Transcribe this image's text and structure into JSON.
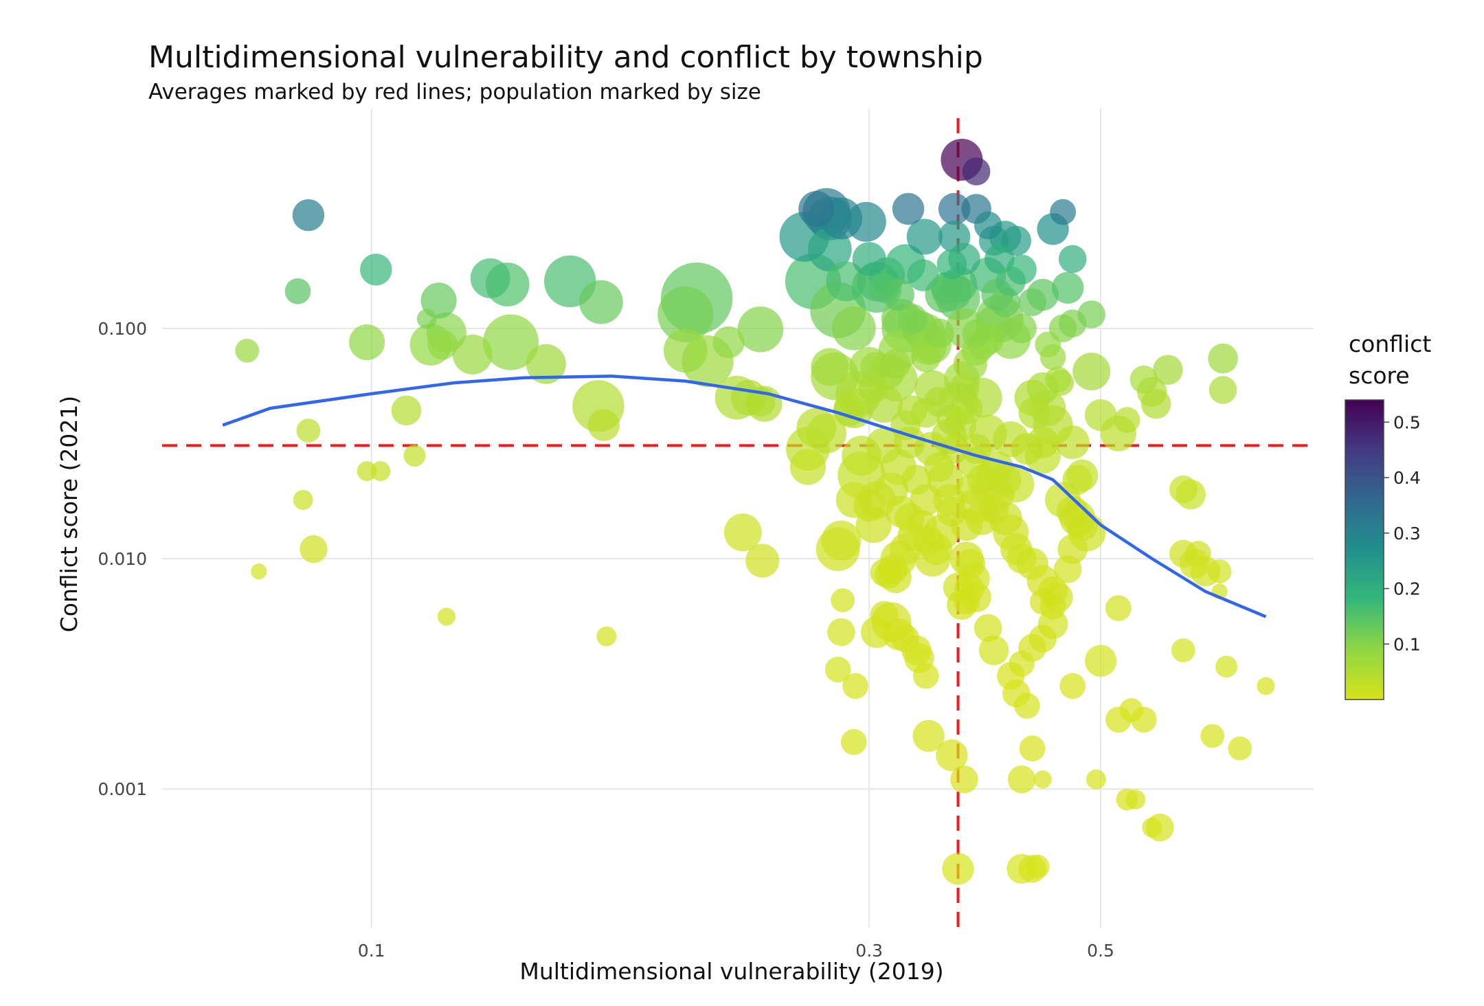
{
  "chart_data": {
    "type": "scatter",
    "title": "Multidimensional vulnerability and conflict by township",
    "subtitle": "Averages marked by red lines; population marked by size",
    "xlabel": "Multidimensional vulnerability (2019)",
    "ylabel": "Conflict score (2021)",
    "x_scale": "log",
    "y_scale": "log",
    "xlim": [
      0.063,
      0.8
    ],
    "ylim": [
      0.00025,
      0.9
    ],
    "x_ticks": [
      {
        "value": 0.1,
        "label": "0.1"
      },
      {
        "value": 0.3,
        "label": "0.3"
      },
      {
        "value": 0.5,
        "label": "0.5"
      }
    ],
    "y_ticks": [
      {
        "value": 0.001,
        "label": "0.001"
      },
      {
        "value": 0.01,
        "label": "0.010"
      },
      {
        "value": 0.1,
        "label": "0.100"
      }
    ],
    "grid": true,
    "reference_lines": {
      "color": "#ee1c1c",
      "style": "dashed",
      "x_mean": 0.365,
      "y_mean": 0.031
    },
    "smooth_line": {
      "color": "#3366ee",
      "points": [
        [
          0.072,
          0.038
        ],
        [
          0.08,
          0.045
        ],
        [
          0.1,
          0.052
        ],
        [
          0.12,
          0.058
        ],
        [
          0.14,
          0.061
        ],
        [
          0.17,
          0.062
        ],
        [
          0.2,
          0.059
        ],
        [
          0.24,
          0.052
        ],
        [
          0.28,
          0.043
        ],
        [
          0.33,
          0.034
        ],
        [
          0.38,
          0.028
        ],
        [
          0.42,
          0.025
        ],
        [
          0.45,
          0.022
        ],
        [
          0.5,
          0.014
        ],
        [
          0.56,
          0.01
        ],
        [
          0.63,
          0.0072
        ],
        [
          0.72,
          0.0056
        ]
      ]
    },
    "color_scale": {
      "title": "conflict score",
      "colors": [
        "#d7e219",
        "#8fd744",
        "#35b779",
        "#21908d",
        "#31688e",
        "#443a83",
        "#440154"
      ],
      "min": 0,
      "max": 0.54,
      "ticks": [
        "0.1",
        "0.2",
        "0.3",
        "0.4",
        "0.5"
      ]
    },
    "points": [
      [
        0.087,
        0.31,
        1.6
      ],
      [
        0.101,
        0.18,
        1.6
      ],
      [
        0.085,
        0.145,
        1.3
      ],
      [
        0.076,
        0.08,
        1.2
      ],
      [
        0.078,
        0.0088,
        0.8
      ],
      [
        0.087,
        0.036,
        1.2
      ],
      [
        0.086,
        0.018,
        1.0
      ],
      [
        0.088,
        0.011,
        1.4
      ],
      [
        0.099,
        0.087,
        1.8
      ],
      [
        0.099,
        0.024,
        1.0
      ],
      [
        0.102,
        0.024,
        1.0
      ],
      [
        0.108,
        0.044,
        1.5
      ],
      [
        0.11,
        0.028,
        1.1
      ],
      [
        0.113,
        0.11,
        1.0
      ],
      [
        0.116,
        0.132,
        1.8
      ],
      [
        0.114,
        0.085,
        2.1
      ],
      [
        0.118,
        0.096,
        2.0
      ],
      [
        0.117,
        0.085,
        1.5
      ],
      [
        0.125,
        0.077,
        2.0
      ],
      [
        0.13,
        0.165,
        2.0
      ],
      [
        0.135,
        0.155,
        2.2
      ],
      [
        0.136,
        0.087,
        2.8
      ],
      [
        0.147,
        0.07,
        2.0
      ],
      [
        0.155,
        0.16,
        2.6
      ],
      [
        0.166,
        0.13,
        2.2
      ],
      [
        0.165,
        0.046,
        2.6
      ],
      [
        0.167,
        0.038,
        1.6
      ],
      [
        0.118,
        0.0056,
        0.9
      ],
      [
        0.168,
        0.0046,
        1.0
      ],
      [
        0.2,
        0.115,
        2.8
      ],
      [
        0.205,
        0.135,
        3.6
      ],
      [
        0.2,
        0.08,
        2.2
      ],
      [
        0.21,
        0.072,
        2.6
      ],
      [
        0.22,
        0.087,
        1.6
      ],
      [
        0.236,
        0.099,
        2.3
      ],
      [
        0.224,
        0.05,
        2.2
      ],
      [
        0.23,
        0.05,
        1.8
      ],
      [
        0.236,
        0.048,
        1.5
      ],
      [
        0.238,
        0.047,
        1.8
      ],
      [
        0.227,
        0.013,
        1.9
      ],
      [
        0.237,
        0.0098,
        1.7
      ],
      [
        0.26,
        0.25,
        2.5
      ],
      [
        0.267,
        0.33,
        1.8
      ],
      [
        0.273,
        0.32,
        2.4
      ],
      [
        0.275,
        0.3,
        2.2
      ],
      [
        0.275,
        0.22,
        2.2
      ],
      [
        0.282,
        0.3,
        2.1
      ],
      [
        0.265,
        0.16,
        2.8
      ],
      [
        0.28,
        0.12,
        2.8
      ],
      [
        0.285,
        0.16,
        2.0
      ],
      [
        0.29,
        0.1,
        2.2
      ],
      [
        0.298,
        0.29,
        2.0
      ],
      [
        0.3,
        0.2,
        1.7
      ],
      [
        0.305,
        0.16,
        2.0
      ],
      [
        0.305,
        0.15,
        2.5
      ],
      [
        0.312,
        0.17,
        1.8
      ],
      [
        0.31,
        0.15,
        1.5
      ],
      [
        0.275,
        0.068,
        1.9
      ],
      [
        0.278,
        0.062,
        2.4
      ],
      [
        0.287,
        0.044,
        1.6
      ],
      [
        0.29,
        0.045,
        2.0
      ],
      [
        0.293,
        0.052,
        2.3
      ],
      [
        0.3,
        0.068,
        2.0
      ],
      [
        0.304,
        0.068,
        1.5
      ],
      [
        0.303,
        0.055,
        1.5
      ],
      [
        0.312,
        0.065,
        1.8
      ],
      [
        0.318,
        0.06,
        2.2
      ],
      [
        0.31,
        0.047,
        1.9
      ],
      [
        0.267,
        0.037,
        2.0
      ],
      [
        0.262,
        0.03,
        2.2
      ],
      [
        0.262,
        0.025,
        1.8
      ],
      [
        0.273,
        0.035,
        2.0
      ],
      [
        0.295,
        0.028,
        2.0
      ],
      [
        0.295,
        0.023,
        2.4
      ],
      [
        0.29,
        0.018,
        1.8
      ],
      [
        0.3,
        0.017,
        1.6
      ],
      [
        0.303,
        0.014,
        1.8
      ],
      [
        0.31,
        0.031,
        1.8
      ],
      [
        0.305,
        0.018,
        1.9
      ],
      [
        0.282,
        0.012,
        2.0
      ],
      [
        0.28,
        0.011,
        2.2
      ],
      [
        0.283,
        0.0066,
        1.2
      ],
      [
        0.282,
        0.0048,
        1.4
      ],
      [
        0.28,
        0.0033,
        1.3
      ],
      [
        0.291,
        0.0028,
        1.3
      ],
      [
        0.29,
        0.0016,
        1.3
      ],
      [
        0.31,
        0.0087,
        1.4
      ],
      [
        0.327,
        0.33,
        1.6
      ],
      [
        0.339,
        0.25,
        1.8
      ],
      [
        0.338,
        0.17,
        1.6
      ],
      [
        0.325,
        0.19,
        2.0
      ],
      [
        0.32,
        0.14,
        1.6
      ],
      [
        0.322,
        0.11,
        2.0
      ],
      [
        0.33,
        0.11,
        1.5
      ],
      [
        0.335,
        0.1,
        1.8
      ],
      [
        0.34,
        0.095,
        2.0
      ],
      [
        0.342,
        0.083,
        1.8
      ],
      [
        0.34,
        0.075,
        1.5
      ],
      [
        0.325,
        0.1,
        2.4
      ],
      [
        0.32,
        0.08,
        2.0
      ],
      [
        0.318,
        0.07,
        1.5
      ],
      [
        0.345,
        0.085,
        1.9
      ],
      [
        0.35,
        0.095,
        1.5
      ],
      [
        0.36,
        0.145,
        2.0
      ],
      [
        0.365,
        0.135,
        2.2
      ],
      [
        0.362,
        0.33,
        1.6
      ],
      [
        0.362,
        0.25,
        1.6
      ],
      [
        0.36,
        0.19,
        1.5
      ],
      [
        0.366,
        0.155,
        1.8
      ],
      [
        0.356,
        0.15,
        1.6
      ],
      [
        0.353,
        0.14,
        1.8
      ],
      [
        0.37,
        0.2,
        1.6
      ],
      [
        0.371,
        0.1,
        2.0
      ],
      [
        0.38,
        0.08,
        1.5
      ],
      [
        0.375,
        0.07,
        1.7
      ],
      [
        0.368,
        0.06,
        1.8
      ],
      [
        0.365,
        0.048,
        2.0
      ],
      [
        0.37,
        0.055,
        1.5
      ],
      [
        0.36,
        0.04,
        1.5
      ],
      [
        0.358,
        0.034,
        1.8
      ],
      [
        0.362,
        0.03,
        1.5
      ],
      [
        0.38,
        0.03,
        1.5
      ],
      [
        0.39,
        0.035,
        1.9
      ],
      [
        0.367,
        0.038,
        1.6
      ],
      [
        0.372,
        0.045,
        1.6
      ],
      [
        0.385,
        0.05,
        2.0
      ],
      [
        0.34,
        0.043,
        1.5
      ],
      [
        0.345,
        0.055,
        1.8
      ],
      [
        0.35,
        0.048,
        1.5
      ],
      [
        0.328,
        0.032,
        1.6
      ],
      [
        0.325,
        0.038,
        1.5
      ],
      [
        0.33,
        0.044,
        1.5
      ],
      [
        0.32,
        0.025,
        1.8
      ],
      [
        0.315,
        0.02,
        1.7
      ],
      [
        0.322,
        0.016,
        1.6
      ],
      [
        0.328,
        0.015,
        1.5
      ],
      [
        0.333,
        0.022,
        1.5
      ],
      [
        0.34,
        0.018,
        1.6
      ],
      [
        0.344,
        0.03,
        1.7
      ],
      [
        0.35,
        0.025,
        1.5
      ],
      [
        0.355,
        0.022,
        1.8
      ],
      [
        0.358,
        0.018,
        1.6
      ],
      [
        0.36,
        0.016,
        1.5
      ],
      [
        0.352,
        0.013,
        1.8
      ],
      [
        0.348,
        0.011,
        1.6
      ],
      [
        0.345,
        0.01,
        1.8
      ],
      [
        0.342,
        0.012,
        1.5
      ],
      [
        0.337,
        0.014,
        1.5
      ],
      [
        0.33,
        0.0125,
        1.5
      ],
      [
        0.325,
        0.011,
        1.6
      ],
      [
        0.32,
        0.01,
        1.8
      ],
      [
        0.316,
        0.009,
        1.5
      ],
      [
        0.318,
        0.0083,
        1.6
      ],
      [
        0.313,
        0.0085,
        1.4
      ],
      [
        0.31,
        0.0057,
        1.4
      ],
      [
        0.305,
        0.0048,
        1.6
      ],
      [
        0.315,
        0.0053,
        2.0
      ],
      [
        0.32,
        0.0047,
        1.6
      ],
      [
        0.325,
        0.0045,
        1.4
      ],
      [
        0.333,
        0.004,
        1.5
      ],
      [
        0.335,
        0.0037,
        1.5
      ],
      [
        0.34,
        0.0031,
        1.3
      ],
      [
        0.342,
        0.0017,
        1.6
      ],
      [
        0.36,
        0.0014,
        1.6
      ],
      [
        0.37,
        0.0011,
        1.4
      ],
      [
        0.365,
        0.00045,
        1.6
      ],
      [
        0.365,
        0.0075,
        1.5
      ],
      [
        0.368,
        0.0063,
        1.5
      ],
      [
        0.372,
        0.01,
        1.7
      ],
      [
        0.375,
        0.0095,
        1.5
      ],
      [
        0.378,
        0.0082,
        1.6
      ],
      [
        0.374,
        0.0074,
        1.5
      ],
      [
        0.372,
        0.0065,
        1.3
      ],
      [
        0.38,
        0.0068,
        1.5
      ],
      [
        0.39,
        0.005,
        1.4
      ],
      [
        0.395,
        0.004,
        1.5
      ],
      [
        0.38,
        0.017,
        1.8
      ],
      [
        0.385,
        0.015,
        1.7
      ],
      [
        0.39,
        0.02,
        1.6
      ],
      [
        0.395,
        0.0165,
        1.5
      ],
      [
        0.398,
        0.025,
        1.6
      ],
      [
        0.393,
        0.0235,
        1.5
      ],
      [
        0.385,
        0.022,
        1.5
      ],
      [
        0.378,
        0.026,
        1.6
      ],
      [
        0.375,
        0.02,
        1.5
      ],
      [
        0.372,
        0.014,
        1.6
      ],
      [
        0.368,
        0.54,
        2.1
      ],
      [
        0.38,
        0.48,
        1.4
      ],
      [
        0.38,
        0.33,
        1.5
      ],
      [
        0.39,
        0.28,
        1.4
      ],
      [
        0.395,
        0.24,
        1.5
      ],
      [
        0.405,
        0.25,
        1.6
      ],
      [
        0.415,
        0.24,
        1.5
      ],
      [
        0.4,
        0.2,
        1.5
      ],
      [
        0.39,
        0.17,
        1.8
      ],
      [
        0.398,
        0.14,
        1.6
      ],
      [
        0.405,
        0.13,
        1.5
      ],
      [
        0.41,
        0.16,
        1.5
      ],
      [
        0.42,
        0.18,
        1.5
      ],
      [
        0.4,
        0.11,
        2.4
      ],
      [
        0.395,
        0.105,
        1.8
      ],
      [
        0.39,
        0.09,
        1.6
      ],
      [
        0.385,
        0.085,
        1.5
      ],
      [
        0.38,
        0.095,
        1.4
      ],
      [
        0.41,
        0.09,
        2.0
      ],
      [
        0.42,
        0.1,
        1.5
      ],
      [
        0.43,
        0.13,
        1.4
      ],
      [
        0.44,
        0.14,
        1.6
      ],
      [
        0.45,
        0.27,
        1.6
      ],
      [
        0.46,
        0.32,
        1.3
      ],
      [
        0.47,
        0.2,
        1.4
      ],
      [
        0.465,
        0.15,
        1.6
      ],
      [
        0.46,
        0.1,
        1.4
      ],
      [
        0.47,
        0.105,
        1.4
      ],
      [
        0.49,
        0.115,
        1.4
      ],
      [
        0.445,
        0.085,
        1.3
      ],
      [
        0.45,
        0.075,
        1.3
      ],
      [
        0.455,
        0.06,
        1.3
      ],
      [
        0.458,
        0.058,
        1.3
      ],
      [
        0.43,
        0.05,
        1.8
      ],
      [
        0.44,
        0.055,
        1.6
      ],
      [
        0.445,
        0.045,
        1.8
      ],
      [
        0.45,
        0.038,
        2.0
      ],
      [
        0.44,
        0.028,
        1.8
      ],
      [
        0.44,
        0.032,
        1.6
      ],
      [
        0.432,
        0.043,
        1.6
      ],
      [
        0.425,
        0.03,
        1.6
      ],
      [
        0.41,
        0.033,
        1.8
      ],
      [
        0.415,
        0.021,
        1.8
      ],
      [
        0.405,
        0.022,
        1.6
      ],
      [
        0.4,
        0.019,
        1.5
      ],
      [
        0.405,
        0.015,
        1.7
      ],
      [
        0.41,
        0.013,
        1.8
      ],
      [
        0.415,
        0.011,
        1.6
      ],
      [
        0.42,
        0.01,
        1.5
      ],
      [
        0.43,
        0.0095,
        1.6
      ],
      [
        0.44,
        0.008,
        1.6
      ],
      [
        0.45,
        0.0072,
        1.5
      ],
      [
        0.455,
        0.0068,
        1.5
      ],
      [
        0.45,
        0.0062,
        1.3
      ],
      [
        0.44,
        0.0065,
        1.3
      ],
      [
        0.46,
        0.018,
        1.8
      ],
      [
        0.47,
        0.016,
        1.6
      ],
      [
        0.475,
        0.015,
        1.8
      ],
      [
        0.48,
        0.014,
        1.6
      ],
      [
        0.485,
        0.013,
        1.9
      ],
      [
        0.47,
        0.011,
        1.5
      ],
      [
        0.465,
        0.009,
        1.4
      ],
      [
        0.48,
        0.023,
        1.6
      ],
      [
        0.475,
        0.022,
        1.5
      ],
      [
        0.45,
        0.0052,
        1.5
      ],
      [
        0.44,
        0.0045,
        1.4
      ],
      [
        0.43,
        0.0041,
        1.4
      ],
      [
        0.42,
        0.0035,
        1.3
      ],
      [
        0.41,
        0.0031,
        1.4
      ],
      [
        0.415,
        0.0026,
        1.4
      ],
      [
        0.425,
        0.0023,
        1.3
      ],
      [
        0.43,
        0.0015,
        1.3
      ],
      [
        0.42,
        0.0011,
        1.4
      ],
      [
        0.44,
        0.0011,
        0.9
      ],
      [
        0.42,
        0.00045,
        1.5
      ],
      [
        0.43,
        0.00045,
        1.4
      ],
      [
        0.435,
        0.00046,
        1.2
      ],
      [
        0.47,
        0.0028,
        1.3
      ],
      [
        0.5,
        0.0036,
        1.6
      ],
      [
        0.495,
        0.0011,
        1.0
      ],
      [
        0.49,
        0.065,
        1.9
      ],
      [
        0.5,
        0.042,
        1.6
      ],
      [
        0.47,
        0.032,
        1.7
      ],
      [
        0.52,
        0.035,
        1.8
      ],
      [
        0.53,
        0.04,
        1.3
      ],
      [
        0.55,
        0.06,
        1.4
      ],
      [
        0.56,
        0.053,
        1.5
      ],
      [
        0.565,
        0.047,
        1.5
      ],
      [
        0.58,
        0.066,
        1.5
      ],
      [
        0.6,
        0.02,
        1.4
      ],
      [
        0.61,
        0.019,
        1.5
      ],
      [
        0.6,
        0.0105,
        1.4
      ],
      [
        0.62,
        0.0105,
        1.3
      ],
      [
        0.615,
        0.0095,
        1.5
      ],
      [
        0.63,
        0.0088,
        1.5
      ],
      [
        0.65,
        0.0072,
        0.8
      ],
      [
        0.52,
        0.0061,
        1.3
      ],
      [
        0.6,
        0.004,
        1.2
      ],
      [
        0.66,
        0.0034,
        1.1
      ],
      [
        0.72,
        0.0028,
        0.9
      ],
      [
        0.55,
        0.002,
        1.3
      ],
      [
        0.535,
        0.0022,
        1.2
      ],
      [
        0.52,
        0.002,
        1.3
      ],
      [
        0.64,
        0.0017,
        1.2
      ],
      [
        0.68,
        0.0015,
        1.2
      ],
      [
        0.54,
        0.0009,
        1.0
      ],
      [
        0.53,
        0.0009,
        1.1
      ],
      [
        0.56,
        0.00068,
        1.0
      ],
      [
        0.57,
        0.00068,
        1.4
      ],
      [
        0.655,
        0.074,
        1.5
      ],
      [
        0.655,
        0.054,
        1.4
      ],
      [
        0.65,
        0.0088,
        1.2
      ]
    ]
  }
}
